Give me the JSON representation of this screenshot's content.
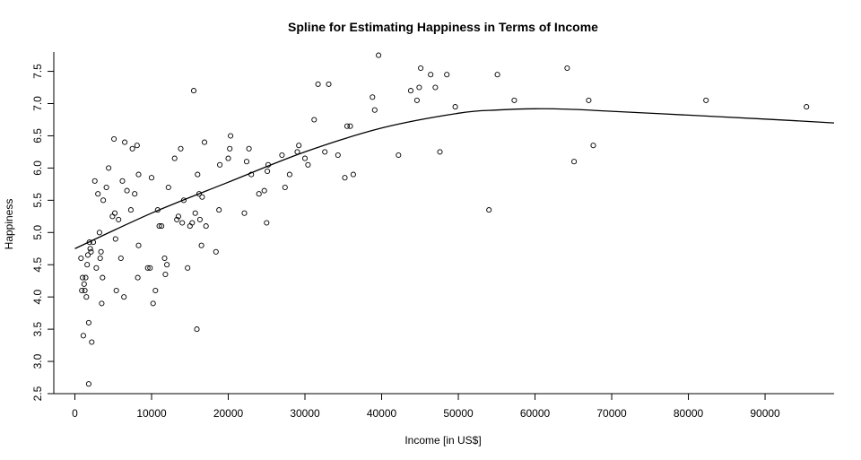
{
  "chart_data": {
    "type": "scatter",
    "title": "Spline for Estimating Happiness in Terms of Income",
    "xlabel": "Income [in US$]",
    "ylabel": "Happiness",
    "xlim": [
      0,
      99000
    ],
    "ylim": [
      2.5,
      7.8
    ],
    "x_ticks": [
      0,
      10000,
      20000,
      30000,
      40000,
      50000,
      60000,
      70000,
      80000,
      90000
    ],
    "y_ticks": [
      2.5,
      3.0,
      3.5,
      4.0,
      4.5,
      5.0,
      5.5,
      6.0,
      6.5,
      7.0,
      7.5
    ],
    "grid": false,
    "legend": "none",
    "series": [
      {
        "kind": "points",
        "x": [
          800,
          900,
          1000,
          1100,
          1200,
          1300,
          1400,
          1500,
          1600,
          1700,
          1800,
          1800,
          1900,
          2000,
          2100,
          2200,
          2400,
          2600,
          2800,
          3000,
          3200,
          3300,
          3400,
          3500,
          3600,
          3700,
          4100,
          4400,
          4900,
          5100,
          5200,
          5300,
          5400,
          5700,
          6000,
          6200,
          6400,
          6500,
          6800,
          7300,
          7500,
          7800,
          8100,
          8200,
          8300,
          8300,
          9500,
          9800,
          10000,
          10200,
          10500,
          10800,
          11000,
          11300,
          11700,
          11800,
          12000,
          12200,
          13000,
          13300,
          13500,
          13800,
          14000,
          14200,
          14700,
          15000,
          15300,
          15500,
          15700,
          15900,
          16000,
          16200,
          16300,
          16500,
          16600,
          16900,
          17100,
          18400,
          18800,
          18900,
          20000,
          20200,
          20300,
          22100,
          22400,
          22700,
          23000,
          24000,
          24700,
          25000,
          25100,
          25200,
          27000,
          27400,
          28000,
          29000,
          29200,
          30000,
          30400,
          31200,
          31700,
          32600,
          33100,
          34300,
          35200,
          35500,
          35900,
          36300,
          38800,
          39100,
          39600,
          42200,
          43800,
          44600,
          44900,
          45100,
          46400,
          47000,
          47600,
          48500,
          49600,
          54000,
          55100,
          57300,
          64200,
          65100,
          67000,
          67600,
          82300,
          95400
        ],
        "y": [
          4.6,
          4.1,
          4.3,
          3.4,
          4.2,
          4.1,
          4.3,
          4.0,
          4.5,
          4.65,
          2.65,
          3.6,
          4.85,
          4.75,
          4.7,
          3.3,
          4.85,
          5.8,
          4.45,
          5.6,
          5.0,
          4.6,
          4.7,
          3.9,
          4.3,
          5.5,
          5.7,
          6.0,
          5.25,
          6.45,
          5.3,
          4.9,
          4.1,
          5.2,
          4.6,
          5.8,
          4.0,
          6.4,
          5.65,
          5.35,
          6.3,
          5.6,
          6.35,
          4.3,
          5.9,
          4.8,
          4.45,
          4.45,
          5.85,
          3.9,
          4.1,
          5.35,
          5.1,
          5.1,
          4.6,
          4.35,
          4.5,
          5.7,
          6.15,
          5.2,
          5.25,
          6.3,
          5.15,
          5.5,
          4.45,
          5.1,
          5.15,
          7.2,
          5.3,
          3.5,
          5.9,
          5.6,
          5.2,
          4.8,
          5.55,
          6.4,
          5.1,
          4.7,
          5.35,
          6.05,
          6.15,
          6.3,
          6.5,
          5.3,
          6.1,
          6.3,
          5.9,
          5.6,
          5.65,
          5.15,
          5.95,
          6.05,
          6.2,
          5.7,
          5.9,
          6.25,
          6.35,
          6.15,
          6.05,
          6.75,
          7.3,
          6.25,
          7.3,
          6.2,
          5.85,
          6.65,
          6.65,
          5.9,
          7.1,
          6.9,
          7.75,
          6.2,
          7.2,
          7.05,
          7.25,
          7.55,
          7.45,
          7.25,
          6.25,
          7.45,
          6.95,
          5.35,
          7.45,
          7.05,
          7.55,
          6.1,
          7.05,
          6.35,
          7.05,
          6.95
        ]
      },
      {
        "kind": "spline",
        "x": [
          0,
          10000,
          20000,
          30000,
          40000,
          50000,
          55000,
          60000,
          65000,
          70000,
          80000,
          90000,
          99000
        ],
        "y": [
          4.75,
          5.3,
          5.78,
          6.25,
          6.62,
          6.85,
          6.9,
          6.92,
          6.91,
          6.88,
          6.82,
          6.76,
          6.7
        ]
      }
    ]
  }
}
